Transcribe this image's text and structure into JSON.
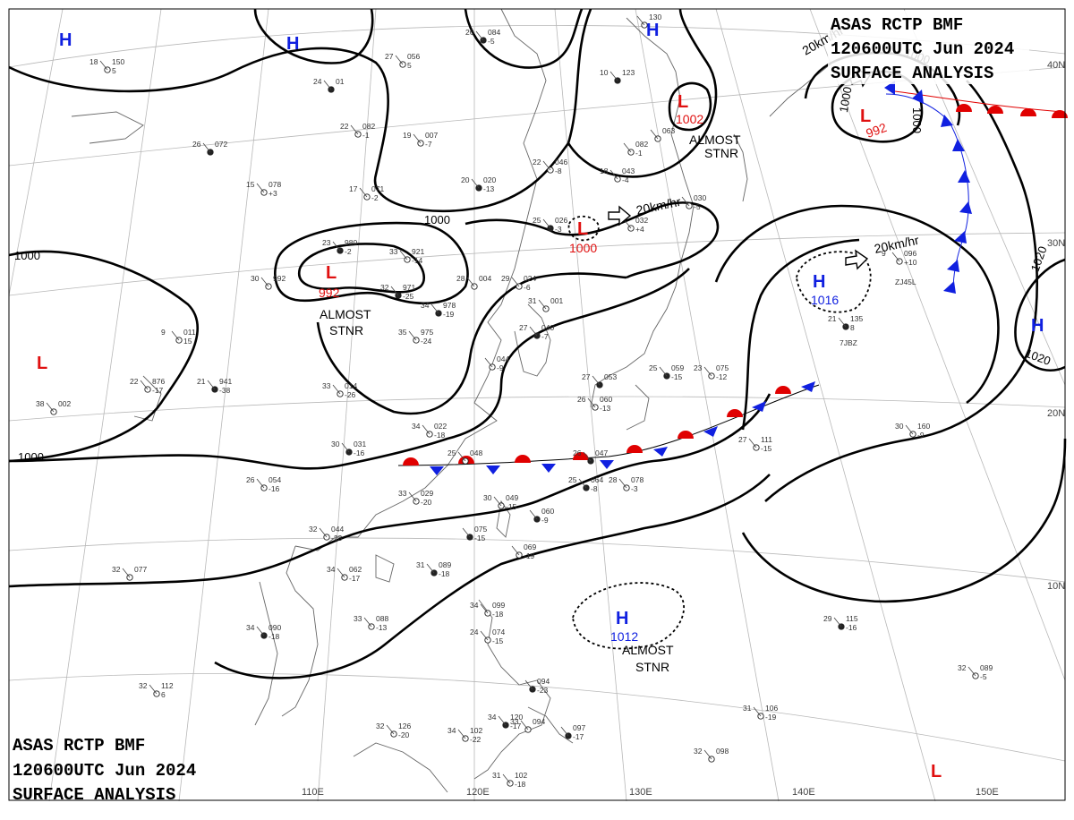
{
  "header_top": {
    "line1": "ASAS    RCTP    BMF",
    "line2": "120600UTC    Jun    2024",
    "line3": "SURFACE  ANALYSIS"
  },
  "header_bottom": {
    "line1": "ASAS    RCTP    BMF",
    "line2": "120600UTC    Jun    2024",
    "line3": "SURFACE  ANALYSIS"
  },
  "grid_labels": {
    "lon": [
      "110E",
      "120E",
      "130E",
      "140E",
      "150E"
    ],
    "lat": [
      "40N",
      "30N",
      "20N",
      "10N"
    ]
  },
  "isobar_labels": [
    "1000",
    "1000",
    "1000",
    "1000",
    "1000",
    "1000",
    "1020",
    "1020"
  ],
  "centers": [
    {
      "type": "H",
      "value": ""
    },
    {
      "type": "H",
      "value": ""
    },
    {
      "type": "H",
      "value": ""
    },
    {
      "type": "L",
      "value": "1002"
    },
    {
      "type": "L",
      "value": "992"
    },
    {
      "type": "L",
      "value": "1000"
    },
    {
      "type": "L",
      "value": "992"
    },
    {
      "type": "H",
      "value": "1016"
    },
    {
      "type": "H",
      "value": ""
    },
    {
      "type": "L",
      "value": ""
    },
    {
      "type": "H",
      "value": "1012"
    },
    {
      "type": "L",
      "value": ""
    }
  ],
  "annotations": {
    "stnr1_a": "ALMOST",
    "stnr1_b": "STNR",
    "stnr2_a": "ALMOST",
    "stnr2_b": "STNR",
    "stnr3_a": "ALMOST",
    "stnr3_b": "STNR",
    "speed1": "20km/hr",
    "speed2": "20km/hr",
    "speed3": "20km/hr"
  },
  "stations": [
    {
      "t": "26",
      "p": "084",
      "d": "-5"
    },
    {
      "t": "27",
      "p": "056",
      "d": "5"
    },
    {
      "t": "18",
      "p": "150",
      "d": "5"
    },
    {
      "t": "24",
      "p": "01",
      "d": ""
    },
    {
      "t": "22",
      "p": "082",
      "d": "-1"
    },
    {
      "t": "19",
      "p": "007",
      "d": "-7"
    },
    {
      "t": "26",
      "p": "072",
      "d": ""
    },
    {
      "t": "15",
      "p": "078",
      "d": "+3"
    },
    {
      "t": "17",
      "p": "071",
      "d": "-2"
    },
    {
      "t": "20",
      "p": "020",
      "d": "-13"
    },
    {
      "t": "22",
      "p": "046",
      "d": "-8"
    },
    {
      "t": "18",
      "p": "043",
      "d": "-4"
    },
    {
      "t": "10",
      "p": "123",
      "d": ""
    },
    {
      "t": "",
      "p": "082",
      "d": "-1"
    },
    {
      "t": "",
      "p": "063",
      "d": ""
    },
    {
      "t": "25",
      "p": "026",
      "d": "-3"
    },
    {
      "t": "",
      "p": "032",
      "d": "+4"
    },
    {
      "t": "",
      "p": "030",
      "d": "-5"
    },
    {
      "t": "23",
      "p": "980",
      "d": "-2"
    },
    {
      "t": "33",
      "p": "921",
      "d": "-14"
    },
    {
      "t": "30",
      "p": "992",
      "d": ""
    },
    {
      "t": "32",
      "p": "971",
      "d": "-25"
    },
    {
      "t": "28",
      "p": "004",
      "d": ""
    },
    {
      "t": "29",
      "p": "024",
      "d": "-6"
    },
    {
      "t": "34",
      "p": "978",
      "d": "-19"
    },
    {
      "t": "35",
      "p": "975",
      "d": "-24"
    },
    {
      "t": "31",
      "p": "001",
      "d": ""
    },
    {
      "t": "27",
      "p": "040",
      "d": "-7"
    },
    {
      "t": "9",
      "p": "011",
      "d": "15"
    },
    {
      "t": "22",
      "p": "876",
      "d": "-17"
    },
    {
      "t": "21",
      "p": "941",
      "d": "-38"
    },
    {
      "t": "33",
      "p": "014",
      "d": "-26"
    },
    {
      "t": "",
      "p": "044",
      "d": "-9"
    },
    {
      "t": "25",
      "p": "059",
      "d": "-15"
    },
    {
      "t": "23",
      "p": "075",
      "d": "-12"
    },
    {
      "t": "38",
      "p": "002",
      "d": ""
    },
    {
      "t": "27",
      "p": "053",
      "d": ""
    },
    {
      "t": "26",
      "p": "060",
      "d": "-13"
    },
    {
      "t": "34",
      "p": "022",
      "d": "-18"
    },
    {
      "t": "30",
      "p": "031",
      "d": "-16"
    },
    {
      "t": "25",
      "p": "048",
      "d": ""
    },
    {
      "t": "26",
      "p": "054",
      "d": "-16"
    },
    {
      "t": "26",
      "p": "047",
      "d": ""
    },
    {
      "t": "27",
      "p": "111",
      "d": "-15"
    },
    {
      "t": "33",
      "p": "029",
      "d": "-20"
    },
    {
      "t": "25",
      "p": "064",
      "d": "-8"
    },
    {
      "t": "28",
      "p": "078",
      "d": "-3"
    },
    {
      "t": "30",
      "p": "049",
      "d": "-15"
    },
    {
      "t": "",
      "p": "060",
      "d": "-9"
    },
    {
      "t": "30",
      "p": "160",
      "d": "-9"
    },
    {
      "t": "32",
      "p": "044",
      "d": "-23"
    },
    {
      "t": "",
      "p": "075",
      "d": "-15"
    },
    {
      "t": "",
      "p": "069",
      "d": "-19"
    },
    {
      "t": "34",
      "p": "062",
      "d": "-17"
    },
    {
      "t": "31",
      "p": "089",
      "d": "-18"
    },
    {
      "t": "32",
      "p": "077",
      "d": ""
    },
    {
      "t": "34",
      "p": "099",
      "d": "-18"
    },
    {
      "t": "34",
      "p": "090",
      "d": "-18"
    },
    {
      "t": "33",
      "p": "088",
      "d": "-13"
    },
    {
      "t": "24",
      "p": "074",
      "d": "-15"
    },
    {
      "t": "29",
      "p": "115",
      "d": "-16"
    },
    {
      "t": "32",
      "p": "089",
      "d": "-5"
    },
    {
      "t": "32",
      "p": "112",
      "d": "6"
    },
    {
      "t": "",
      "p": "094",
      "d": "-23"
    },
    {
      "t": "31",
      "p": "106",
      "d": "-19"
    },
    {
      "t": "32",
      "p": "126",
      "d": "-20"
    },
    {
      "t": "34",
      "p": "120",
      "d": "-17"
    },
    {
      "t": "33",
      "p": "094",
      "d": ""
    },
    {
      "t": "34",
      "p": "102",
      "d": "-22"
    },
    {
      "t": "",
      "p": "097",
      "d": "-17"
    },
    {
      "t": "32",
      "p": "098",
      "d": ""
    },
    {
      "t": "31",
      "p": "102",
      "d": "-18"
    },
    {
      "t": "21",
      "p": "135",
      "d": "8"
    },
    {
      "t": "9",
      "p": "096",
      "d": "+10"
    },
    {
      "t": "",
      "p": "130",
      "d": ""
    }
  ],
  "station_ids": [
    "7JBZ",
    "ZJ45L"
  ]
}
